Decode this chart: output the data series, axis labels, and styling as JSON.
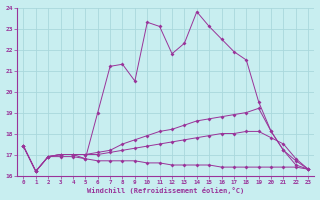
{
  "xlabel": "Windchill (Refroidissement éolien,°C)",
  "xlim": [
    -0.5,
    23.5
  ],
  "ylim": [
    16,
    24
  ],
  "yticks": [
    16,
    17,
    18,
    19,
    20,
    21,
    22,
    23,
    24
  ],
  "xticks": [
    0,
    1,
    2,
    3,
    4,
    5,
    6,
    7,
    8,
    9,
    10,
    11,
    12,
    13,
    14,
    15,
    16,
    17,
    18,
    19,
    20,
    21,
    22,
    23
  ],
  "background_color": "#c8eef0",
  "grid_color": "#aad8dc",
  "line_color": "#993399",
  "line1_y": [
    17.4,
    16.2,
    16.9,
    16.9,
    16.9,
    16.8,
    19.0,
    21.2,
    21.3,
    20.5,
    23.3,
    23.1,
    21.8,
    22.3,
    23.8,
    23.1,
    22.5,
    21.9,
    21.5,
    19.5,
    18.1,
    17.2,
    16.5,
    16.3
  ],
  "line2_y": [
    17.4,
    16.2,
    16.9,
    17.0,
    17.0,
    17.0,
    17.1,
    17.2,
    17.5,
    17.7,
    17.9,
    18.1,
    18.2,
    18.4,
    18.6,
    18.7,
    18.8,
    18.9,
    19.0,
    19.2,
    18.1,
    17.2,
    16.7,
    16.3
  ],
  "line3_y": [
    17.4,
    16.2,
    16.9,
    17.0,
    17.0,
    17.0,
    17.0,
    17.1,
    17.2,
    17.3,
    17.4,
    17.5,
    17.6,
    17.7,
    17.8,
    17.9,
    18.0,
    18.0,
    18.1,
    18.1,
    17.8,
    17.5,
    16.8,
    16.3
  ],
  "line4_y": [
    17.4,
    16.2,
    16.9,
    17.0,
    17.0,
    16.8,
    16.7,
    16.7,
    16.7,
    16.7,
    16.6,
    16.6,
    16.5,
    16.5,
    16.5,
    16.5,
    16.4,
    16.4,
    16.4,
    16.4,
    16.4,
    16.4,
    16.4,
    16.3
  ]
}
